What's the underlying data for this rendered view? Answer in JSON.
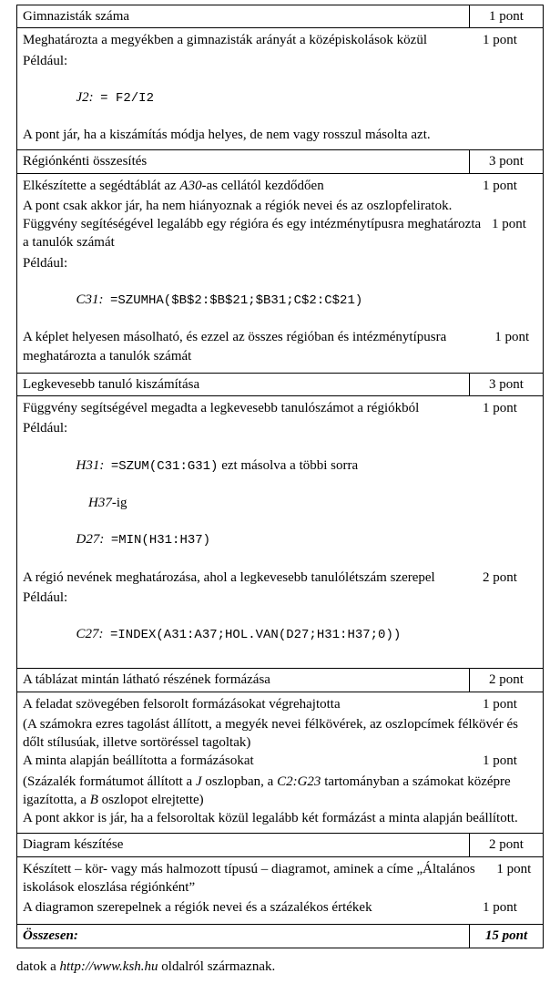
{
  "sections": {
    "s1": {
      "title": "Gimnazisták száma",
      "points": "1 pont"
    },
    "s2": {
      "title": "Régiónkénti összesítés",
      "points": "3 pont"
    },
    "s3": {
      "title": "Legkevesebb tanuló kiszámítása",
      "points": "3 pont"
    },
    "s4": {
      "title": "A táblázat mintán látható részének formázása",
      "points": "2 pont"
    },
    "s5": {
      "title": "Diagram készítése",
      "points": "2 pont"
    },
    "total": {
      "title": "Összesen:",
      "points": "15 pont"
    }
  },
  "body1": {
    "item1_text": "Meghatározta a megyékben a gimnazisták arányát a középiskolások közül",
    "item1_points": "1 pont",
    "example_label": "Például:",
    "formula_cell": "J2:",
    "formula_code": "= F2/I2",
    "note": "A pont jár, ha a kiszámítás módja helyes, de nem vagy rosszul másolta azt."
  },
  "body2": {
    "item1_pre": "Elkészítette a segédtáblát az ",
    "item1_cell": "A30",
    "item1_post": "-as cellától kezdődően",
    "item1_points": "1 pont",
    "item1_note": "A pont csak akkor jár, ha nem hiányoznak a régiók nevei és az oszlopfeliratok.",
    "item2_text": "Függvény segítéségével legalább egy régióra és egy intézménytípusra meghatározta a tanulók számát",
    "item2_points": "1 pont",
    "example_label": "Például:",
    "formula_cell": "C31:",
    "formula_code": "=SZUMHA($B$2:$B$21;$B31;C$2:C$21)",
    "item3_text": "A képlet helyesen másolható, és ezzel az összes régióban és intézménytípusra meghatározta a tanulók számát",
    "item3_points": "1 pont"
  },
  "body3": {
    "item1_text": "Függvény segítségével megadta a legkevesebb tanulószámot a régiókból",
    "item1_points": "1 pont",
    "example_label": "Például:",
    "formula1_cell": "H31:",
    "formula1_code": "=SZUM(C31:G31)",
    "formula1_trail": " ezt másolva a többi sorra",
    "subnote_cell": "H37",
    "subnote_suffix": "-ig",
    "formula2_cell": "D27:",
    "formula2_code": "=MIN(H31:H37)",
    "item2_text": "A régió nevének meghatározása, ahol a legkevesebb tanulólétszám szerepel",
    "item2_points": "2 pont",
    "example2_label": "Például:",
    "formula3_cell": "C27:",
    "formula3_code": "=INDEX(A31:A37;HOL.VAN(D27;H31:H37;0))"
  },
  "body4": {
    "item1_text": "A feladat szövegében felsorolt formázásokat végrehajtotta",
    "item1_points": "1 pont",
    "item1_note": "(A számokra ezres tagolást állított, a megyék nevei félkövérek, az oszlopcímek félkövér és dőlt stílusúak, illetve sortöréssel tagoltak)",
    "item2_text": "A minta alapján beállította a formázásokat",
    "item2_points": "1 pont",
    "item2_note_pre": "(Százalék formátumot állított a ",
    "item2_note_j": "J",
    "item2_note_mid1": " oszlopban, a ",
    "item2_note_range": "C2:G23",
    "item2_note_mid2": " tartományban a számokat középre igazította, a ",
    "item2_note_b": "B",
    "item2_note_post": " oszlopot elrejtette)",
    "note2": "A pont akkor is jár, ha a felsoroltak közül legalább két formázást a minta alapján beállított."
  },
  "body5": {
    "item1_pre": "Készített – kör- vagy más halmozott típusú – diagramot, aminek a címe „",
    "item1_title": "Általános iskolások eloszlása régiónként",
    "item1_post": "”",
    "item1_points": "1 pont",
    "item2_text": "A diagramon szerepelnek a régiók nevei és a százalékos értékek",
    "item2_points": "1 pont"
  },
  "footnote": {
    "pre": "datok a ",
    "url": "http://www.ksh.hu",
    "post": " oldalról származnak."
  }
}
